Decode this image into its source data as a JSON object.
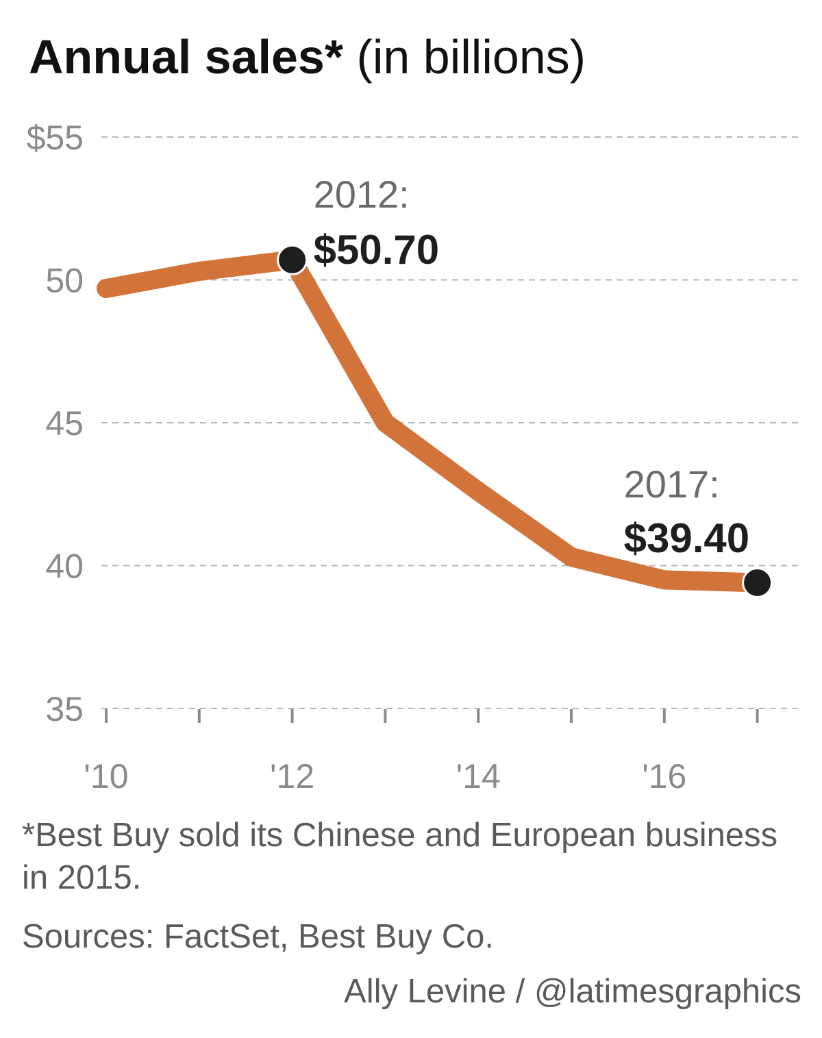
{
  "colors": {
    "line": "#d2743a",
    "marker": "#1e1e1e",
    "grid": "#b5b5b5",
    "axis_text": "#8a8a8a",
    "annotation_year": "#6a6a6a",
    "annotation_value": "#1e1e1e",
    "note_text": "#5a5a5a"
  },
  "chart_data": {
    "type": "line",
    "title": "Annual sales*",
    "subtitle": "(in billions)",
    "x": [
      2010,
      2011,
      2012,
      2013,
      2014,
      2015,
      2016,
      2017
    ],
    "series": [
      {
        "values": [
          49.7,
          50.3,
          50.7,
          45.0,
          42.6,
          40.3,
          39.5,
          39.4
        ]
      }
    ],
    "ylim": [
      35,
      55
    ],
    "y_ticks": [
      55,
      50,
      45,
      40,
      35
    ],
    "y_tick_labels": [
      "$55",
      "50",
      "45",
      "40",
      "35"
    ],
    "x_ticks": [
      2010,
      2012,
      2014,
      2016
    ],
    "x_tick_labels": [
      "'10",
      "'12",
      "'14",
      "'16"
    ],
    "grid": "horizontal dashed",
    "markers": [
      {
        "x": 2012,
        "y": 50.7,
        "year_label": "2012:",
        "value_label": "$50.70"
      },
      {
        "x": 2017,
        "y": 39.4,
        "year_label": "2017:",
        "value_label": "$39.40"
      }
    ]
  },
  "footer": {
    "note": "*Best Buy sold its Chinese and European business in 2015.",
    "sources": "Sources: FactSet, Best Buy Co.",
    "credit": "Ally Levine / @latimesgraphics"
  }
}
